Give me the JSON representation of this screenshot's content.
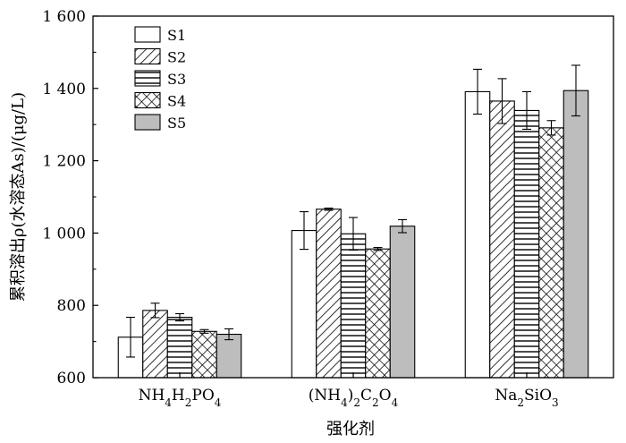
{
  "chart_data": {
    "type": "bar",
    "xlabel": "强化剂",
    "ylabel": "累积溶出ρ(水溶态As)/(μg/L)",
    "ylim": [
      600,
      1600
    ],
    "yticks": [
      600,
      800,
      1000,
      1200,
      1400,
      1600
    ],
    "ytick_labels": [
      "600",
      "800",
      "1 000",
      "1 200",
      "1 400",
      "1 600"
    ],
    "grid": false,
    "legend_position": "top-left",
    "categories": [
      {
        "base": "NH",
        "parts": [
          [
            "NH",
            ""
          ],
          [
            "4",
            "sub"
          ],
          [
            "H",
            ""
          ],
          [
            "2",
            "sub"
          ],
          [
            "PO",
            ""
          ],
          [
            "4",
            "sub"
          ]
        ]
      },
      {
        "base": "(NH",
        "parts": [
          [
            "(NH",
            ""
          ],
          [
            "4",
            "sub"
          ],
          [
            ")",
            ""
          ],
          [
            "2",
            "sub"
          ],
          [
            "C",
            ""
          ],
          [
            "2",
            "sub"
          ],
          [
            "O",
            ""
          ],
          [
            "4",
            "sub"
          ]
        ]
      },
      {
        "base": "Na",
        "parts": [
          [
            "Na",
            ""
          ],
          [
            "2",
            "sub"
          ],
          [
            "SiO",
            ""
          ],
          [
            "3",
            "sub"
          ]
        ]
      }
    ],
    "category_text": [
      "NH4H2PO4",
      "(NH4)2C2O4",
      "Na2SiO3"
    ],
    "series": [
      {
        "name": "S1",
        "pattern": "none",
        "values": [
          712,
          1007,
          1391
        ],
        "errors": [
          55,
          52,
          62
        ]
      },
      {
        "name": "S2",
        "pattern": "diagonal",
        "values": [
          786,
          1066,
          1365
        ],
        "errors": [
          20,
          3,
          62
        ]
      },
      {
        "name": "S3",
        "pattern": "horizontal",
        "values": [
          767,
          998,
          1339
        ],
        "errors": [
          10,
          45,
          52
        ]
      },
      {
        "name": "S4",
        "pattern": "crosshatch",
        "values": [
          728,
          956,
          1291
        ],
        "errors": [
          5,
          4,
          20
        ]
      },
      {
        "name": "S5",
        "pattern": "gray",
        "values": [
          720,
          1019,
          1394
        ],
        "errors": [
          15,
          18,
          70
        ]
      }
    ]
  }
}
